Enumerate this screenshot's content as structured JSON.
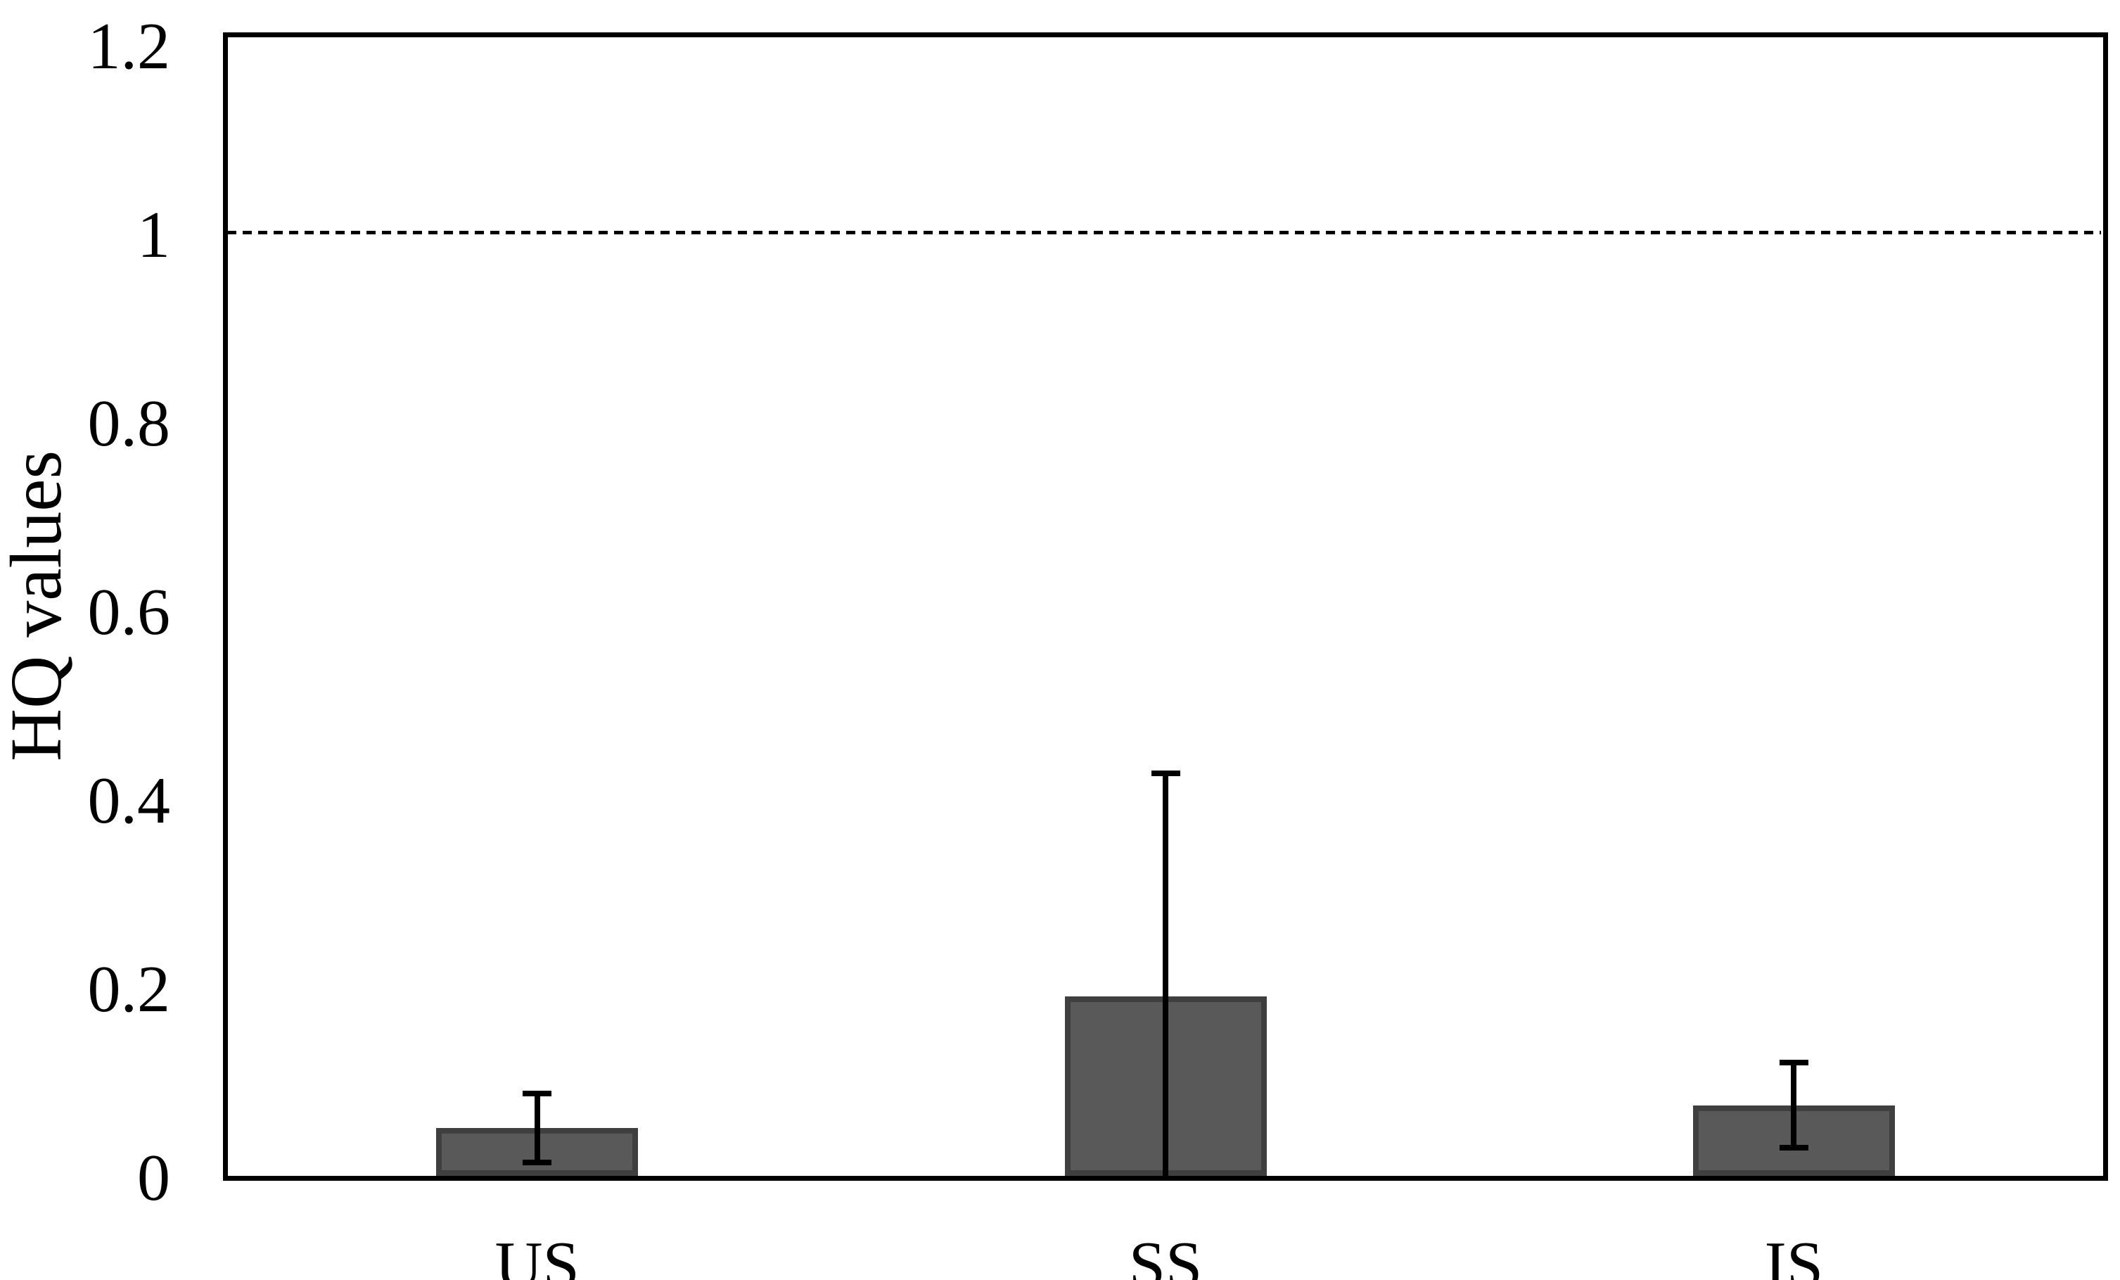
{
  "chart_data": {
    "type": "bar",
    "title": "",
    "xlabel": "",
    "ylabel": "HQ values",
    "categories": [
      "US",
      "SS",
      "IS"
    ],
    "values": [
      0.051,
      0.19,
      0.075
    ],
    "error_high": [
      0.09,
      0.43,
      0.123
    ],
    "error_low": [
      0.011,
      0.0,
      0.027
    ],
    "error_low_clipped_at_axis": [
      false,
      true,
      false
    ],
    "yticks": [
      0,
      0.2,
      0.4,
      0.6,
      0.8,
      1,
      1.2
    ],
    "ytick_labels": [
      "0",
      "0.2",
      "0.4",
      "0.6",
      "0.8",
      "1",
      "1.2"
    ],
    "ylim": [
      0,
      1.2
    ],
    "reference_line": {
      "value": 1.0,
      "style": "dashed",
      "color": "#000000"
    },
    "grid": false,
    "legend": null,
    "bar_fill_color": "#595959",
    "bar_border_color": "#3f3f3f",
    "axis_color": "#000000",
    "text_color": "#000000",
    "background_color": "#ffffff"
  }
}
